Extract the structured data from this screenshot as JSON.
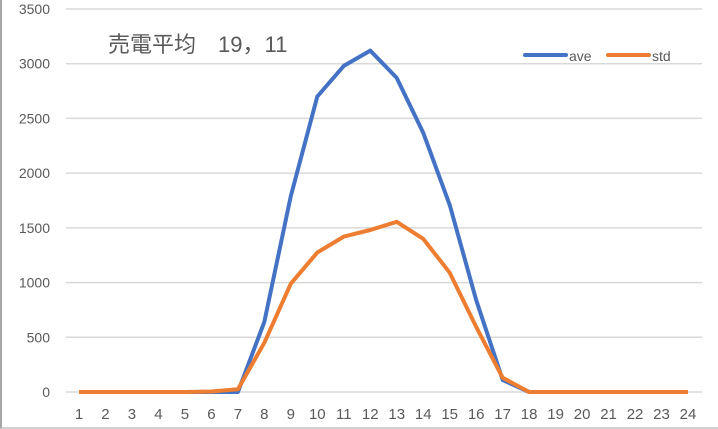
{
  "chart_data": {
    "type": "line",
    "title": "売電平均　19，11",
    "xlabel": "",
    "ylabel": "",
    "ylim": [
      0,
      3500
    ],
    "yticks": [
      0,
      500,
      1000,
      1500,
      2000,
      2500,
      3000,
      3500
    ],
    "grid": true,
    "legend_position": "top-right",
    "categories": [
      "1",
      "2",
      "3",
      "4",
      "5",
      "6",
      "7",
      "8",
      "9",
      "10",
      "11",
      "12",
      "13",
      "14",
      "15",
      "16",
      "17",
      "18",
      "19",
      "20",
      "21",
      "22",
      "23",
      "24"
    ],
    "series": [
      {
        "name": "ave",
        "color": "#4472c4",
        "values": [
          0,
          0,
          0,
          0,
          0,
          0,
          0,
          640,
          1790,
          2700,
          2980,
          3120,
          2870,
          2370,
          1710,
          840,
          110,
          0,
          0,
          0,
          0,
          0,
          0,
          0
        ]
      },
      {
        "name": "std",
        "color": "#ed7d31",
        "values": [
          0,
          0,
          0,
          0,
          0,
          5,
          25,
          450,
          990,
          1275,
          1420,
          1480,
          1555,
          1400,
          1090,
          595,
          130,
          0,
          0,
          0,
          0,
          0,
          0,
          0
        ]
      }
    ]
  },
  "title": {
    "text": "売電平均　19，11"
  },
  "legend": {
    "items": [
      {
        "label": "ave"
      },
      {
        "label": "std"
      }
    ]
  }
}
